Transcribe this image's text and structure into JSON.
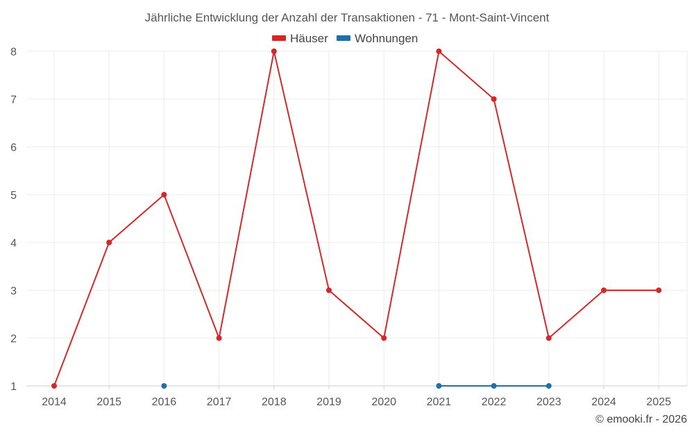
{
  "chart_data": {
    "type": "line",
    "title": "Jährliche Entwicklung der Anzahl der Transaktionen - 71 - Mont-Saint-Vincent",
    "categories": [
      "2014",
      "2015",
      "2016",
      "2017",
      "2018",
      "2019",
      "2020",
      "2021",
      "2022",
      "2023",
      "2024",
      "2025"
    ],
    "ylim": [
      1,
      8
    ],
    "yticks": [
      "1",
      "2",
      "3",
      "4",
      "5",
      "6",
      "7",
      "8"
    ],
    "grid": true,
    "legend_position": "top-center",
    "series": [
      {
        "name": "Häuser",
        "color": "#d62728",
        "values": [
          1,
          4,
          5,
          2,
          8,
          3,
          2,
          8,
          7,
          2,
          3,
          3
        ]
      },
      {
        "name": "Wohnungen",
        "color": "#1f6fa8",
        "values": [
          null,
          null,
          1,
          null,
          null,
          null,
          null,
          1,
          1,
          1,
          null,
          null
        ]
      }
    ]
  },
  "credit": "© emooki.fr - 2026"
}
